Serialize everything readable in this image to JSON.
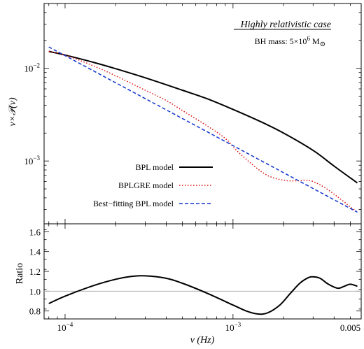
{
  "chart_data": [
    {
      "type": "line",
      "scale": {
        "x": "log",
        "y": "log"
      },
      "xlim": [
        7.5e-05,
        0.0058
      ],
      "ylim": [
        0.00021,
        0.05
      ],
      "yticks": [
        {
          "value": 0.01,
          "base": "10",
          "exp": "−2"
        },
        {
          "value": 0.001,
          "base": "10",
          "exp": "−3"
        }
      ],
      "ylabel": "ν×𝒫(ν)",
      "annotation": {
        "title": "Highly relativistic case",
        "bh_mass_prefix": "BH mass: 5×10",
        "bh_mass_exp": "6",
        "bh_mass_unit": "M",
        "bh_mass_sub": "⊙"
      },
      "series": [
        {
          "name": "BPL model",
          "color": "#000000",
          "dash": "solid",
          "points": [
            [
              8e-05,
              0.0152
            ],
            [
              0.0001,
              0.0139
            ],
            [
              0.00015,
              0.0115
            ],
            [
              0.0002,
              0.0099
            ],
            [
              0.0003,
              0.0079
            ],
            [
              0.0005,
              0.0058
            ],
            [
              0.0007,
              0.0047
            ],
            [
              0.001,
              0.0036
            ],
            [
              0.0015,
              0.0026
            ],
            [
              0.002,
              0.002
            ],
            [
              0.003,
              0.0013
            ],
            [
              0.004,
              0.00088
            ],
            [
              0.0055,
              0.00058
            ]
          ]
        },
        {
          "name": "BPLGRE model",
          "color": "#dd1111",
          "dash": "dotted",
          "points": [
            [
              8e-05,
              0.0152
            ],
            [
              0.0001,
              0.0139
            ],
            [
              0.00015,
              0.0105
            ],
            [
              0.0002,
              0.0083
            ],
            [
              0.0003,
              0.0058
            ],
            [
              0.0004,
              0.0045
            ],
            [
              0.0005,
              0.0035
            ],
            [
              0.0007,
              0.0024
            ],
            [
              0.0009,
              0.00175
            ],
            [
              0.00105,
              0.0013
            ],
            [
              0.0013,
              0.00092
            ],
            [
              0.0016,
              0.0007
            ],
            [
              0.002,
              0.00062
            ],
            [
              0.0024,
              0.00061
            ],
            [
              0.0027,
              0.00062
            ],
            [
              0.003,
              0.0006
            ],
            [
              0.0035,
              0.00052
            ],
            [
              0.0042,
              0.00041
            ],
            [
              0.005,
              0.00032
            ],
            [
              0.0055,
              0.00028
            ]
          ]
        },
        {
          "name": "Best−fitting BPL model",
          "color": "#1133cc",
          "dash": "dashed",
          "points": [
            [
              8e-05,
              0.017
            ],
            [
              0.0055,
              0.00028
            ]
          ]
        }
      ]
    },
    {
      "type": "line",
      "scale": {
        "x": "log",
        "y": "linear"
      },
      "xlim": [
        7.5e-05,
        0.0058
      ],
      "ylim": [
        0.72,
        1.68
      ],
      "ylabel": "Ratio",
      "xlabel": "ν (Hz)",
      "xticks": [
        {
          "value": 0.0001,
          "base": "10",
          "exp": "−4",
          "label": ""
        },
        {
          "value": 0.001,
          "base": "10",
          "exp": "−3",
          "label": ""
        },
        {
          "value": 0.005,
          "base": "",
          "exp": "",
          "label": "0.005"
        }
      ],
      "yticks": [
        "0.8",
        "1.0",
        "1.2",
        "1.4",
        "1.6"
      ],
      "reference_line": 1.0,
      "series": [
        {
          "name": "",
          "color": "#000000",
          "points": [
            [
              8e-05,
              0.875
            ],
            [
              0.0001,
              0.95
            ],
            [
              0.00015,
              1.06
            ],
            [
              0.0002,
              1.12
            ],
            [
              0.00025,
              1.15
            ],
            [
              0.0003,
              1.155
            ],
            [
              0.0004,
              1.13
            ],
            [
              0.0005,
              1.08
            ],
            [
              0.0007,
              0.98
            ],
            [
              0.001,
              0.86
            ],
            [
              0.0012,
              0.8
            ],
            [
              0.0014,
              0.77
            ],
            [
              0.0016,
              0.78
            ],
            [
              0.0019,
              0.86
            ],
            [
              0.0022,
              0.98
            ],
            [
              0.0025,
              1.08
            ],
            [
              0.0028,
              1.135
            ],
            [
              0.003,
              1.145
            ],
            [
              0.0033,
              1.13
            ],
            [
              0.0037,
              1.07
            ],
            [
              0.0042,
              1.03
            ],
            [
              0.0046,
              1.05
            ],
            [
              0.005,
              1.07
            ],
            [
              0.0055,
              1.05
            ]
          ]
        }
      ]
    }
  ]
}
